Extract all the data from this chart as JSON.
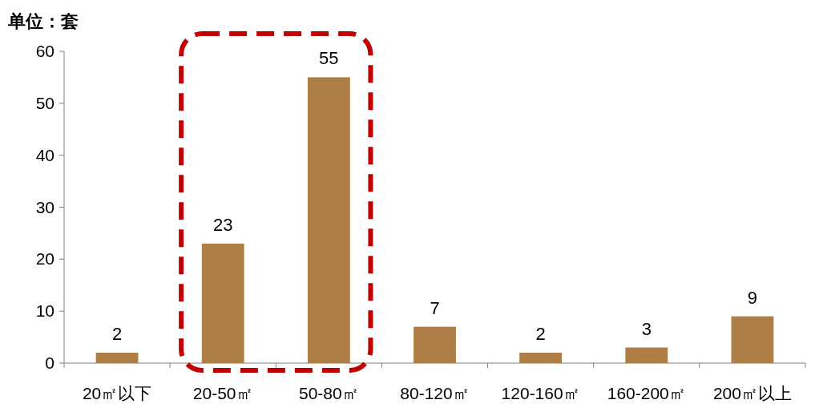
{
  "chart_data": {
    "type": "bar",
    "ylabel": "单位：套",
    "categories": [
      "20㎡以下",
      "20-50㎡",
      "50-80㎡",
      "80-120㎡",
      "120-160㎡",
      "160-200㎡",
      "200㎡以上"
    ],
    "values": [
      2,
      23,
      55,
      7,
      2,
      3,
      9
    ],
    "color": "#ad7f47",
    "ylim": [
      0,
      60
    ],
    "yticks": [
      0,
      10,
      20,
      30,
      40,
      50,
      60
    ],
    "data_labels": true,
    "grid": false
  }
}
